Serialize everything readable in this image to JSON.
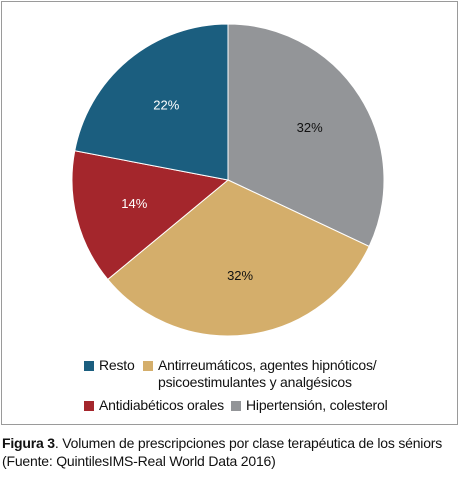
{
  "chart_data": {
    "type": "pie",
    "slices": [
      {
        "label": "Hipertensión, colesterol",
        "value": 32,
        "value_label": "32%",
        "color": "#939598"
      },
      {
        "label": "Antirreumáticos, agentes hipnóticos/ psicoestimulantes y analgésicos",
        "value": 32,
        "value_label": "32%",
        "color": "#d4ae6b"
      },
      {
        "label": "Antidiabéticos orales",
        "value": 14,
        "value_label": "14%",
        "color": "#a4262c"
      },
      {
        "label": "Resto",
        "value": 22,
        "value_label": "22%",
        "color": "#1b5e7f"
      }
    ],
    "start_angle_deg": 0,
    "direction": "clockwise",
    "legend_position": "bottom",
    "legend": {
      "resto": "Resto",
      "antirreumaticos_line1": "Antirreumáticos, agentes hipnóticos/",
      "antirreumaticos_line2": "psicoestimulantes y analgésicos",
      "antidiabeticos": "Antidiabéticos orales",
      "hipertension": "Hipertensión, colesterol"
    }
  },
  "caption": {
    "label": "Figura 3",
    "text": ". Volumen de prescripciones por clase terapéutica de los séniors",
    "source": "(Fuente: QuintilesIMS-Real World Data 2016)"
  }
}
